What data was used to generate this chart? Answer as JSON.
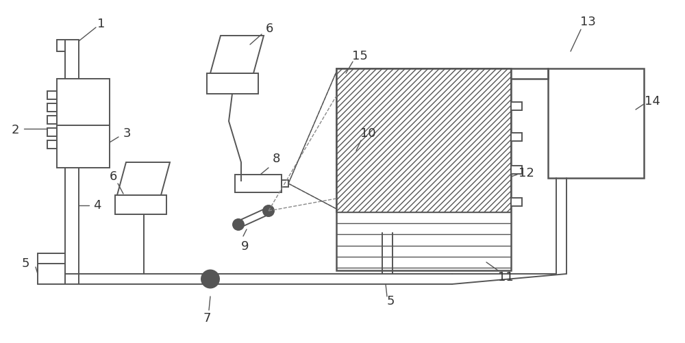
{
  "bg_color": "#ffffff",
  "lc": "#555555",
  "lc_dark": "#333333",
  "figsize": [
    10.0,
    5.01
  ],
  "dpi": 100
}
